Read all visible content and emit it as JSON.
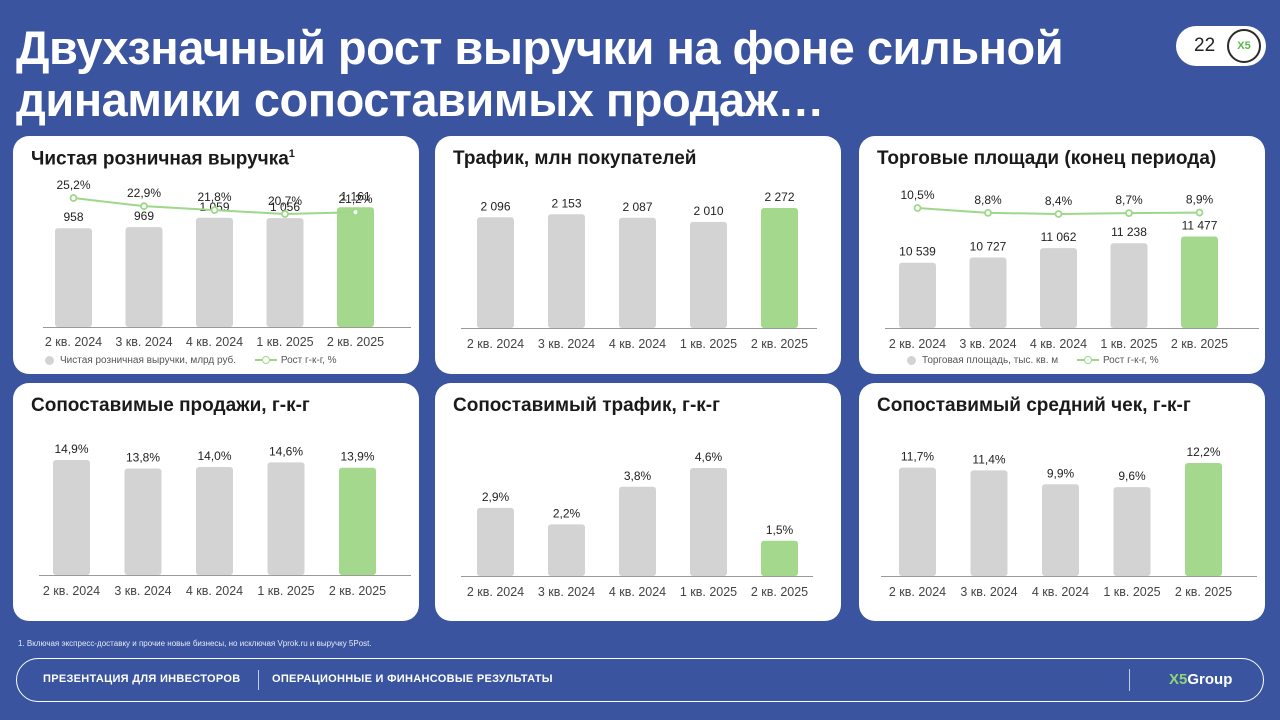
{
  "title": "Двухзначный рост выручки на фоне сильной динамики сопоставимых продаж…",
  "page_number": "22",
  "logo_text": "X5",
  "colors": {
    "background": "#3a54a0",
    "bar": "#d3d3d3",
    "bar_highlight": "#a4d88c",
    "line": "#9fd78a"
  },
  "chart_data": [
    {
      "type": "bar",
      "title": "Чистая розничная выручка",
      "title_sup": "1",
      "categories": [
        "2 кв. 2024",
        "3 кв. 2024",
        "4 кв. 2024",
        "1 кв. 2025",
        "2 кв. 2025"
      ],
      "values": [
        958,
        969,
        1059,
        1056,
        1161
      ],
      "value_labels": [
        "958",
        "969",
        "1 059",
        "1 056",
        "1 161"
      ],
      "highlight_index": 4,
      "ylim": [
        0,
        1600
      ],
      "line_values": [
        25.2,
        22.9,
        21.8,
        20.7,
        21.2
      ],
      "line_labels": [
        "25,2%",
        "22,9%",
        "21,8%",
        "20,7%",
        "21,2%"
      ],
      "legend_bar": "Чистая розничная выручки, млрд руб.",
      "legend_line": "Рост г-к-г, %"
    },
    {
      "type": "bar",
      "title": "Трафик, млн покупателей",
      "categories": [
        "2 кв. 2024",
        "3 кв. 2024",
        "4 кв. 2024",
        "1 кв. 2025",
        "2 кв. 2025"
      ],
      "values": [
        2096,
        2153,
        2087,
        2010,
        2272
      ],
      "value_labels": [
        "2 096",
        "2 153",
        "2 087",
        "2 010",
        "2 272"
      ],
      "highlight_index": 4,
      "ylim": [
        0,
        2272
      ]
    },
    {
      "type": "bar",
      "title": "Торговые площади (конец периода)",
      "categories": [
        "2 кв. 2024",
        "3 кв. 2024",
        "4 кв. 2024",
        "1 кв. 2025",
        "2 кв. 2025"
      ],
      "values": [
        10539,
        10727,
        11062,
        11238,
        11477
      ],
      "value_labels": [
        "10 539",
        "10 727",
        "11 062",
        "11 238",
        "11 477"
      ],
      "highlight_index": 4,
      "ylim": [
        8200,
        12500
      ],
      "line_values": [
        10.5,
        8.8,
        8.4,
        8.7,
        8.9
      ],
      "line_labels": [
        "10,5%",
        "8,8%",
        "8,4%",
        "8,7%",
        "8,9%"
      ],
      "legend_bar": "Торговая площадь, тыс. кв. м",
      "legend_line": "Рост г-к-г, %"
    },
    {
      "type": "bar",
      "title": "Сопоставимые продажи, г-к-г",
      "categories": [
        "2 кв. 2024",
        "3 кв. 2024",
        "4 кв. 2024",
        "1 кв. 2025",
        "2 кв. 2025"
      ],
      "values": [
        14.9,
        13.8,
        14.0,
        14.6,
        13.9
      ],
      "value_labels": [
        "14,9%",
        "13,8%",
        "14,0%",
        "14,6%",
        "13,9%"
      ],
      "highlight_index": 4,
      "ylim": [
        0,
        14.9
      ]
    },
    {
      "type": "bar",
      "title": "Сопоставимый трафик, г-к-г",
      "categories": [
        "2 кв. 2024",
        "3 кв. 2024",
        "4 кв. 2024",
        "1 кв. 2025",
        "2 кв. 2025"
      ],
      "values": [
        2.9,
        2.2,
        3.8,
        4.6,
        1.5
      ],
      "value_labels": [
        "2,9%",
        "2,2%",
        "3,8%",
        "4,6%",
        "1,5%"
      ],
      "highlight_index": 4,
      "ylim": [
        0,
        4.6
      ]
    },
    {
      "type": "bar",
      "title": "Сопоставимый средний чек, г-к-г",
      "categories": [
        "2 кв. 2024",
        "3 кв. 2024",
        "4 кв. 2024",
        "1 кв. 2025",
        "2 кв. 2025"
      ],
      "values": [
        11.7,
        11.4,
        9.9,
        9.6,
        12.2
      ],
      "value_labels": [
        "11,7%",
        "11,4%",
        "9,9%",
        "9,6%",
        "12,2%"
      ],
      "highlight_index": 4,
      "ylim": [
        0,
        12.2
      ]
    }
  ],
  "footnote": "1. Включая экспресс-доставку и прочие новые бизнесы, но исключая Vprok.ru и выручку 5Post.",
  "footer": {
    "left": "ПРЕЗЕНТАЦИЯ ДЛЯ ИНВЕСТОРОВ",
    "right": "ОПЕРАЦИОННЫЕ И ФИНАНСОВЫЕ РЕЗУЛЬТАТЫ",
    "logo_x5": "X5",
    "logo_group": "Group"
  }
}
